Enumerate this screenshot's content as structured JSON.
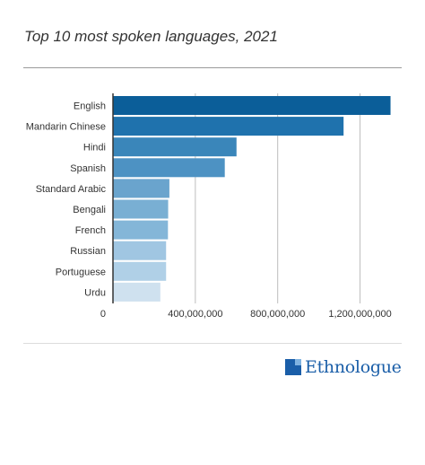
{
  "header": {
    "title": "Top 10 most spoken languages, 2021"
  },
  "footer": {
    "brand_name": "Ethnologue",
    "brand_color": "#1a5ea8"
  },
  "chart_data": {
    "type": "bar",
    "orientation": "horizontal",
    "title": "Top 10 most spoken languages, 2021",
    "categories": [
      "English",
      "Mandarin Chinese",
      "Hindi",
      "Spanish",
      "Standard Arabic",
      "Bengali",
      "French",
      "Russian",
      "Portuguese",
      "Urdu"
    ],
    "values": [
      1348000000,
      1120000000,
      600000000,
      543000000,
      274000000,
      268000000,
      267000000,
      258000000,
      258000000,
      230000000
    ],
    "xlim": [
      0,
      1350000000
    ],
    "x_ticks": [
      0,
      400000000,
      800000000,
      1200000000
    ],
    "x_tick_labels": [
      "0",
      "400,000,000",
      "800,000,000",
      "1,200,000,000"
    ],
    "xlabel": "",
    "ylabel": "",
    "grid": "vertical",
    "legend": "none",
    "colors": [
      "#0b5e99",
      "#1f72ad",
      "#3a86ba",
      "#4d92c3",
      "#6aa4cd",
      "#79afd3",
      "#84b6d8",
      "#a0c6e2",
      "#b0d0e7",
      "#cfe1ef"
    ]
  }
}
